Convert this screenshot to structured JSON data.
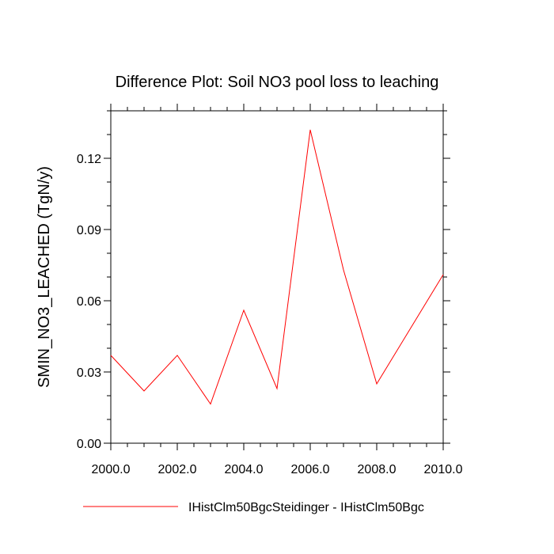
{
  "chart_data": {
    "type": "line",
    "title": "Difference Plot: Soil NO3 pool loss to leaching",
    "xlabel": "",
    "ylabel": "SMIN_NO3_LEACHED  (TgN/y)",
    "xlim": [
      2000,
      2010
    ],
    "ylim": [
      0,
      0.14
    ],
    "x_ticks": [
      "2000.0",
      "2002.0",
      "2004.0",
      "2006.0",
      "2008.0",
      "2010.0"
    ],
    "y_ticks": [
      "0.00",
      "0.03",
      "0.06",
      "0.09",
      "0.12"
    ],
    "grid": false,
    "legend_position": "bottom",
    "series": [
      {
        "name": "IHistClm50BgcSteidinger - IHistClm50Bgc",
        "color": "#ff0000",
        "x": [
          2000,
          2001,
          2002,
          2003,
          2004,
          2005,
          2006,
          2007,
          2008,
          2009,
          2010
        ],
        "values": [
          0.037,
          0.022,
          0.037,
          0.0165,
          0.056,
          0.023,
          0.132,
          0.073,
          0.025,
          0.048,
          0.071
        ]
      }
    ]
  }
}
